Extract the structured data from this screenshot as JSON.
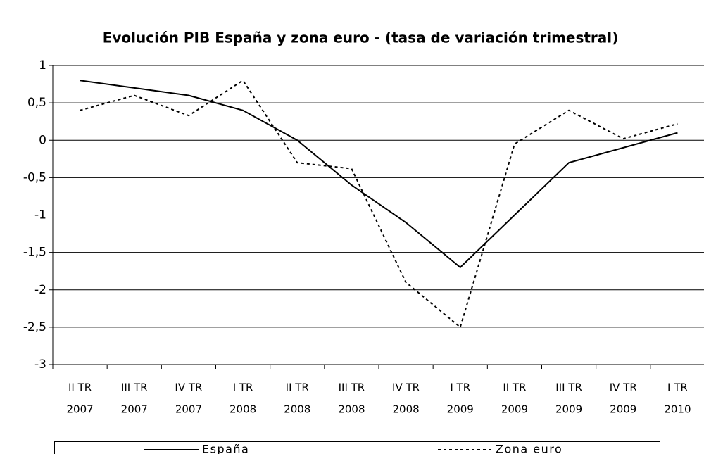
{
  "chart_data": {
    "type": "line",
    "title": "Evolución PIB España y zona euro - (tasa de variación trimestral)",
    "categories": [
      [
        "II TR",
        "2007"
      ],
      [
        "III TR",
        "2007"
      ],
      [
        "IV TR",
        "2007"
      ],
      [
        "I TR",
        "2008"
      ],
      [
        "II TR",
        "2008"
      ],
      [
        "III TR",
        "2008"
      ],
      [
        "IV TR",
        "2008"
      ],
      [
        "I TR",
        "2009"
      ],
      [
        "II TR",
        "2009"
      ],
      [
        "III TR",
        "2009"
      ],
      [
        "IV TR",
        "2009"
      ],
      [
        "I TR",
        "2010"
      ]
    ],
    "series": [
      {
        "name": "España",
        "color": "#000000",
        "dash": "solid",
        "values": [
          0.8,
          0.7,
          0.6,
          0.4,
          0,
          -0.6,
          -1.1,
          -1.7,
          -1.0,
          -0.3,
          -0.1,
          0.1
        ]
      },
      {
        "name": "Zona euro",
        "color": "#000000",
        "dash": "dotted",
        "values": [
          0.4,
          0.6,
          0.33,
          0.8,
          -0.3,
          -0.38,
          -1.9,
          -2.5,
          -0.05,
          0.4,
          0.02,
          0.22
        ]
      }
    ],
    "ylim": [
      -3,
      1
    ],
    "yticks": [
      -3,
      {
        "value": -2.5,
        "label": "-2,5"
      },
      -2,
      {
        "value": -1.5,
        "label": "-1,5"
      },
      -1,
      {
        "value": -0.5,
        "label": "-0,5"
      },
      0,
      {
        "value": 0.5,
        "label": "0,5"
      },
      1
    ],
    "grid": true,
    "legend": "bottom"
  }
}
